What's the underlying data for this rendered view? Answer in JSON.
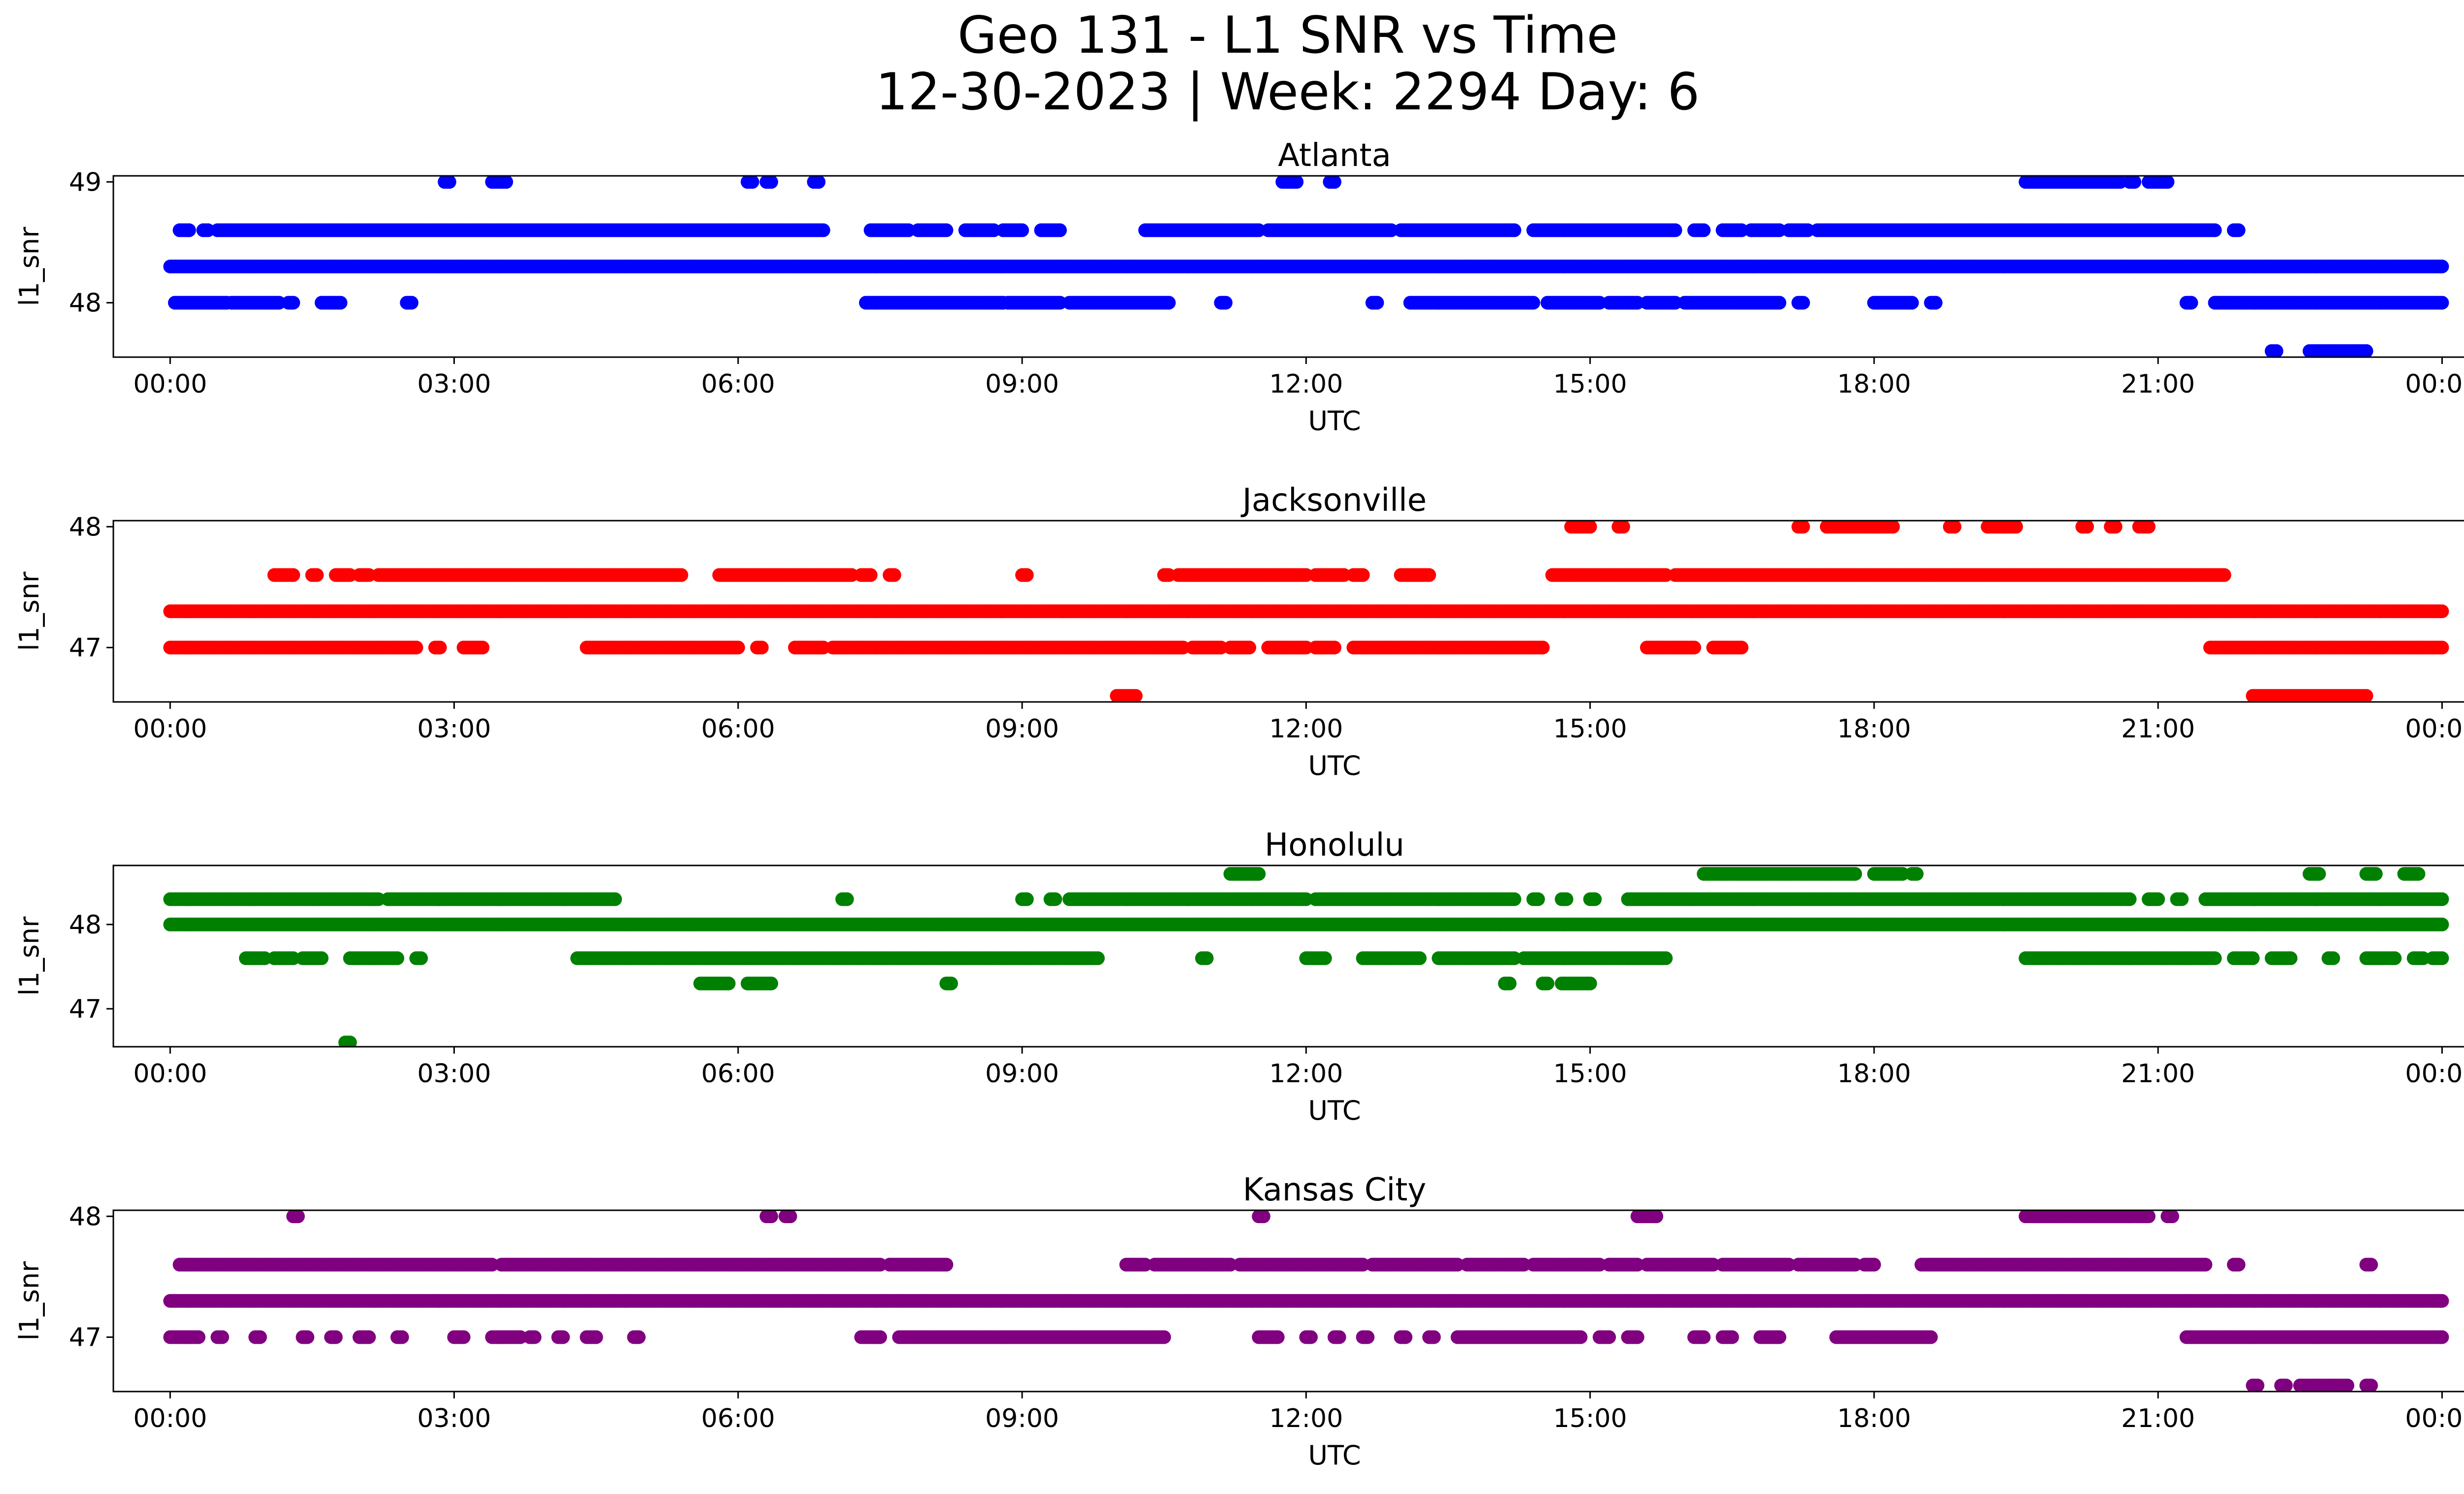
{
  "figure": {
    "title_line1": "Geo 131 - L1 SNR vs Time",
    "title_line2": "12-30-2023 | Week: 2294 Day: 6"
  },
  "chart_data": [
    {
      "type": "scatter",
      "title": "Atlanta",
      "xlabel": "UTC",
      "ylabel": "l1_snr",
      "color": "#0000ff",
      "xlim_hours": [
        -0.6,
        25.2
      ],
      "ylim": [
        47.55,
        49.05
      ],
      "yticks": [
        48,
        49
      ],
      "xticks": [
        "00:00",
        "03:00",
        "06:00",
        "09:00",
        "12:00",
        "15:00",
        "18:00",
        "21:00",
        "00:00"
      ],
      "x_tick_hours": [
        0,
        3,
        6,
        9,
        12,
        15,
        18,
        21,
        24
      ],
      "grid": false,
      "series": [
        {
          "y": 48.3,
          "segments": [
            [
              0,
              24
            ]
          ]
        },
        {
          "y": 48.6,
          "segments": [
            [
              0.1,
              0.2
            ],
            [
              0.35,
              0.4
            ],
            [
              0.5,
              6.9
            ],
            [
              7.4,
              7.8
            ],
            [
              7.9,
              8.2
            ],
            [
              8.4,
              8.7
            ],
            [
              8.8,
              9.0
            ],
            [
              9.2,
              9.4
            ],
            [
              10.3,
              11.5
            ],
            [
              11.6,
              12.9
            ],
            [
              13.0,
              14.2
            ],
            [
              14.4,
              15.9
            ],
            [
              16.1,
              16.2
            ],
            [
              16.4,
              16.6
            ],
            [
              16.7,
              17.0
            ],
            [
              17.1,
              17.3
            ],
            [
              17.4,
              21.6
            ],
            [
              21.8,
              21.85
            ]
          ]
        },
        {
          "y": 48.0,
          "segments": [
            [
              0.05,
              0.6
            ],
            [
              0.65,
              1.15
            ],
            [
              1.25,
              1.3
            ],
            [
              1.6,
              1.8
            ],
            [
              2.5,
              2.55
            ],
            [
              7.35,
              8.8
            ],
            [
              8.85,
              9.4
            ],
            [
              9.5,
              10.55
            ],
            [
              11.1,
              11.15
            ],
            [
              12.7,
              12.75
            ],
            [
              13.1,
              14.4
            ],
            [
              14.55,
              15.1
            ],
            [
              15.2,
              15.5
            ],
            [
              15.6,
              15.9
            ],
            [
              16.0,
              17.0
            ],
            [
              17.2,
              17.25
            ],
            [
              18.0,
              18.4
            ],
            [
              18.6,
              18.65
            ],
            [
              21.3,
              21.35
            ],
            [
              21.6,
              24
            ]
          ]
        },
        {
          "y": 49.0,
          "segments": [
            [
              2.9,
              2.95
            ],
            [
              3.4,
              3.55
            ],
            [
              6.1,
              6.15
            ],
            [
              6.3,
              6.35
            ],
            [
              6.8,
              6.85
            ],
            [
              11.75,
              11.9
            ],
            [
              12.25,
              12.3
            ],
            [
              19.6,
              20.6
            ],
            [
              20.7,
              20.75
            ],
            [
              20.9,
              21.1
            ]
          ]
        },
        {
          "y": 47.6,
          "segments": [
            [
              22.2,
              22.25
            ],
            [
              22.6,
              23.2
            ]
          ]
        }
      ]
    },
    {
      "type": "scatter",
      "title": "Jacksonville",
      "xlabel": "UTC",
      "ylabel": "l1_snr",
      "color": "#ff0000",
      "xlim_hours": [
        -0.6,
        25.2
      ],
      "ylim": [
        46.55,
        48.05
      ],
      "yticks": [
        47,
        48
      ],
      "xticks": [
        "00:00",
        "03:00",
        "06:00",
        "09:00",
        "12:00",
        "15:00",
        "18:00",
        "21:00",
        "00:00"
      ],
      "x_tick_hours": [
        0,
        3,
        6,
        9,
        12,
        15,
        18,
        21,
        24
      ],
      "grid": false,
      "series": [
        {
          "y": 47.3,
          "segments": [
            [
              0,
              24
            ]
          ]
        },
        {
          "y": 47.0,
          "segments": [
            [
              0,
              2.6
            ],
            [
              2.8,
              2.85
            ],
            [
              3.1,
              3.3
            ],
            [
              4.4,
              6.0
            ],
            [
              6.2,
              6.25
            ],
            [
              6.6,
              6.9
            ],
            [
              7.0,
              10.7
            ],
            [
              10.8,
              11.1
            ],
            [
              11.2,
              11.4
            ],
            [
              11.6,
              12.0
            ],
            [
              12.1,
              12.3
            ],
            [
              12.5,
              14.5
            ],
            [
              15.6,
              16.1
            ],
            [
              16.3,
              16.6
            ],
            [
              21.55,
              24
            ]
          ]
        },
        {
          "y": 47.6,
          "segments": [
            [
              1.1,
              1.3
            ],
            [
              1.5,
              1.55
            ],
            [
              1.75,
              1.9
            ],
            [
              2.0,
              2.1
            ],
            [
              2.2,
              5.4
            ],
            [
              5.8,
              7.2
            ],
            [
              7.3,
              7.4
            ],
            [
              7.6,
              7.65
            ],
            [
              9.0,
              9.05
            ],
            [
              10.5,
              10.55
            ],
            [
              10.65,
              12.0
            ],
            [
              12.1,
              12.4
            ],
            [
              12.5,
              12.6
            ],
            [
              13.0,
              13.3
            ],
            [
              14.6,
              15.8
            ],
            [
              15.9,
              21.7
            ]
          ]
        },
        {
          "y": 48.0,
          "segments": [
            [
              14.8,
              15.0
            ],
            [
              15.3,
              15.35
            ],
            [
              17.2,
              17.25
            ],
            [
              17.5,
              18.2
            ],
            [
              18.8,
              18.85
            ],
            [
              19.2,
              19.5
            ],
            [
              20.2,
              20.25
            ],
            [
              20.5,
              20.55
            ],
            [
              20.8,
              20.9
            ]
          ]
        },
        {
          "y": 46.6,
          "segments": [
            [
              10.0,
              10.2
            ],
            [
              22.0,
              23.2
            ]
          ]
        }
      ]
    },
    {
      "type": "scatter",
      "title": "Honolulu",
      "xlabel": "UTC",
      "ylabel": "l1_snr",
      "color": "#008000",
      "xlim_hours": [
        -0.6,
        25.2
      ],
      "ylim": [
        46.55,
        48.7
      ],
      "yticks": [
        47,
        48
      ],
      "xticks": [
        "00:00",
        "03:00",
        "06:00",
        "09:00",
        "12:00",
        "15:00",
        "18:00",
        "21:00",
        "00:00"
      ],
      "x_tick_hours": [
        0,
        3,
        6,
        9,
        12,
        15,
        18,
        21,
        24
      ],
      "grid": false,
      "series": [
        {
          "y": 48.0,
          "segments": [
            [
              0,
              24
            ]
          ]
        },
        {
          "y": 48.3,
          "segments": [
            [
              0,
              2.2
            ],
            [
              2.3,
              4.7
            ],
            [
              7.1,
              7.15
            ],
            [
              9.0,
              9.05
            ],
            [
              9.3,
              9.35
            ],
            [
              9.5,
              12.0
            ],
            [
              12.1,
              14.2
            ],
            [
              14.4,
              14.45
            ],
            [
              14.7,
              14.75
            ],
            [
              15.0,
              15.05
            ],
            [
              15.4,
              20.7
            ],
            [
              20.9,
              21.0
            ],
            [
              21.2,
              21.25
            ],
            [
              21.5,
              24
            ]
          ]
        },
        {
          "y": 47.6,
          "segments": [
            [
              0.8,
              1.0
            ],
            [
              1.1,
              1.3
            ],
            [
              1.4,
              1.6
            ],
            [
              1.9,
              2.4
            ],
            [
              2.6,
              2.65
            ],
            [
              4.3,
              9.8
            ],
            [
              10.9,
              10.95
            ],
            [
              12.0,
              12.2
            ],
            [
              12.6,
              13.2
            ],
            [
              13.4,
              14.2
            ],
            [
              14.3,
              15.8
            ],
            [
              19.6,
              21.6
            ],
            [
              21.8,
              22.0
            ],
            [
              22.2,
              22.4
            ],
            [
              22.8,
              22.85
            ],
            [
              23.2,
              23.5
            ],
            [
              23.7,
              23.8
            ],
            [
              23.9,
              24
            ]
          ]
        },
        {
          "y": 48.6,
          "segments": [
            [
              11.2,
              11.5
            ],
            [
              16.2,
              17.8
            ],
            [
              18.0,
              18.3
            ],
            [
              18.4,
              18.45
            ],
            [
              22.6,
              22.7
            ],
            [
              23.2,
              23.3
            ],
            [
              23.6,
              23.75
            ]
          ]
        },
        {
          "y": 47.3,
          "segments": [
            [
              5.6,
              5.9
            ],
            [
              6.1,
              6.35
            ],
            [
              8.2,
              8.25
            ],
            [
              14.1,
              14.15
            ],
            [
              14.5,
              14.55
            ],
            [
              14.7,
              15.0
            ]
          ]
        },
        {
          "y": 46.6,
          "segments": [
            [
              1.85,
              1.9
            ]
          ]
        }
      ]
    },
    {
      "type": "scatter",
      "title": "Kansas City",
      "xlabel": "UTC",
      "ylabel": "l1_snr",
      "color": "#800080",
      "xlim_hours": [
        -0.6,
        25.2
      ],
      "ylim": [
        46.55,
        48.05
      ],
      "yticks": [
        47,
        48
      ],
      "xticks": [
        "00:00",
        "03:00",
        "06:00",
        "09:00",
        "12:00",
        "15:00",
        "18:00",
        "21:00",
        "00:00"
      ],
      "x_tick_hours": [
        0,
        3,
        6,
        9,
        12,
        15,
        18,
        21,
        24
      ],
      "grid": false,
      "series": [
        {
          "y": 47.3,
          "segments": [
            [
              0,
              24
            ]
          ]
        },
        {
          "y": 47.6,
          "segments": [
            [
              0.1,
              3.4
            ],
            [
              3.5,
              7.5
            ],
            [
              7.6,
              8.2
            ],
            [
              10.1,
              10.3
            ],
            [
              10.4,
              11.2
            ],
            [
              11.3,
              12.6
            ],
            [
              12.7,
              13.6
            ],
            [
              13.7,
              14.3
            ],
            [
              14.4,
              15.1
            ],
            [
              15.2,
              15.5
            ],
            [
              15.6,
              16.3
            ],
            [
              16.4,
              17.1
            ],
            [
              17.2,
              17.8
            ],
            [
              17.9,
              18.0
            ],
            [
              18.5,
              21.5
            ],
            [
              21.8,
              21.85
            ],
            [
              23.2,
              23.25
            ]
          ]
        },
        {
          "y": 47.0,
          "segments": [
            [
              0,
              0.3
            ],
            [
              0.5,
              0.55
            ],
            [
              0.9,
              0.95
            ],
            [
              1.4,
              1.45
            ],
            [
              1.7,
              1.75
            ],
            [
              2.0,
              2.1
            ],
            [
              2.4,
              2.45
            ],
            [
              3.0,
              3.1
            ],
            [
              3.4,
              3.7
            ],
            [
              3.8,
              3.85
            ],
            [
              4.1,
              4.15
            ],
            [
              4.4,
              4.5
            ],
            [
              4.9,
              4.95
            ],
            [
              7.3,
              7.5
            ],
            [
              7.7,
              10.5
            ],
            [
              11.5,
              11.7
            ],
            [
              12.0,
              12.05
            ],
            [
              12.3,
              12.35
            ],
            [
              12.6,
              12.65
            ],
            [
              13.0,
              13.05
            ],
            [
              13.3,
              13.35
            ],
            [
              13.6,
              14.9
            ],
            [
              15.1,
              15.2
            ],
            [
              15.4,
              15.5
            ],
            [
              16.1,
              16.2
            ],
            [
              16.4,
              16.5
            ],
            [
              16.8,
              17.0
            ],
            [
              17.6,
              18.6
            ],
            [
              21.3,
              24
            ]
          ]
        },
        {
          "y": 48.0,
          "segments": [
            [
              1.3,
              1.35
            ],
            [
              6.3,
              6.35
            ],
            [
              6.5,
              6.55
            ],
            [
              11.5,
              11.55
            ],
            [
              15.5,
              15.7
            ],
            [
              19.6,
              20.9
            ],
            [
              21.1,
              21.15
            ]
          ]
        },
        {
          "y": 46.6,
          "segments": [
            [
              22.0,
              22.05
            ],
            [
              22.3,
              22.35
            ],
            [
              22.5,
              23.0
            ],
            [
              23.2,
              23.25
            ]
          ]
        }
      ]
    }
  ]
}
